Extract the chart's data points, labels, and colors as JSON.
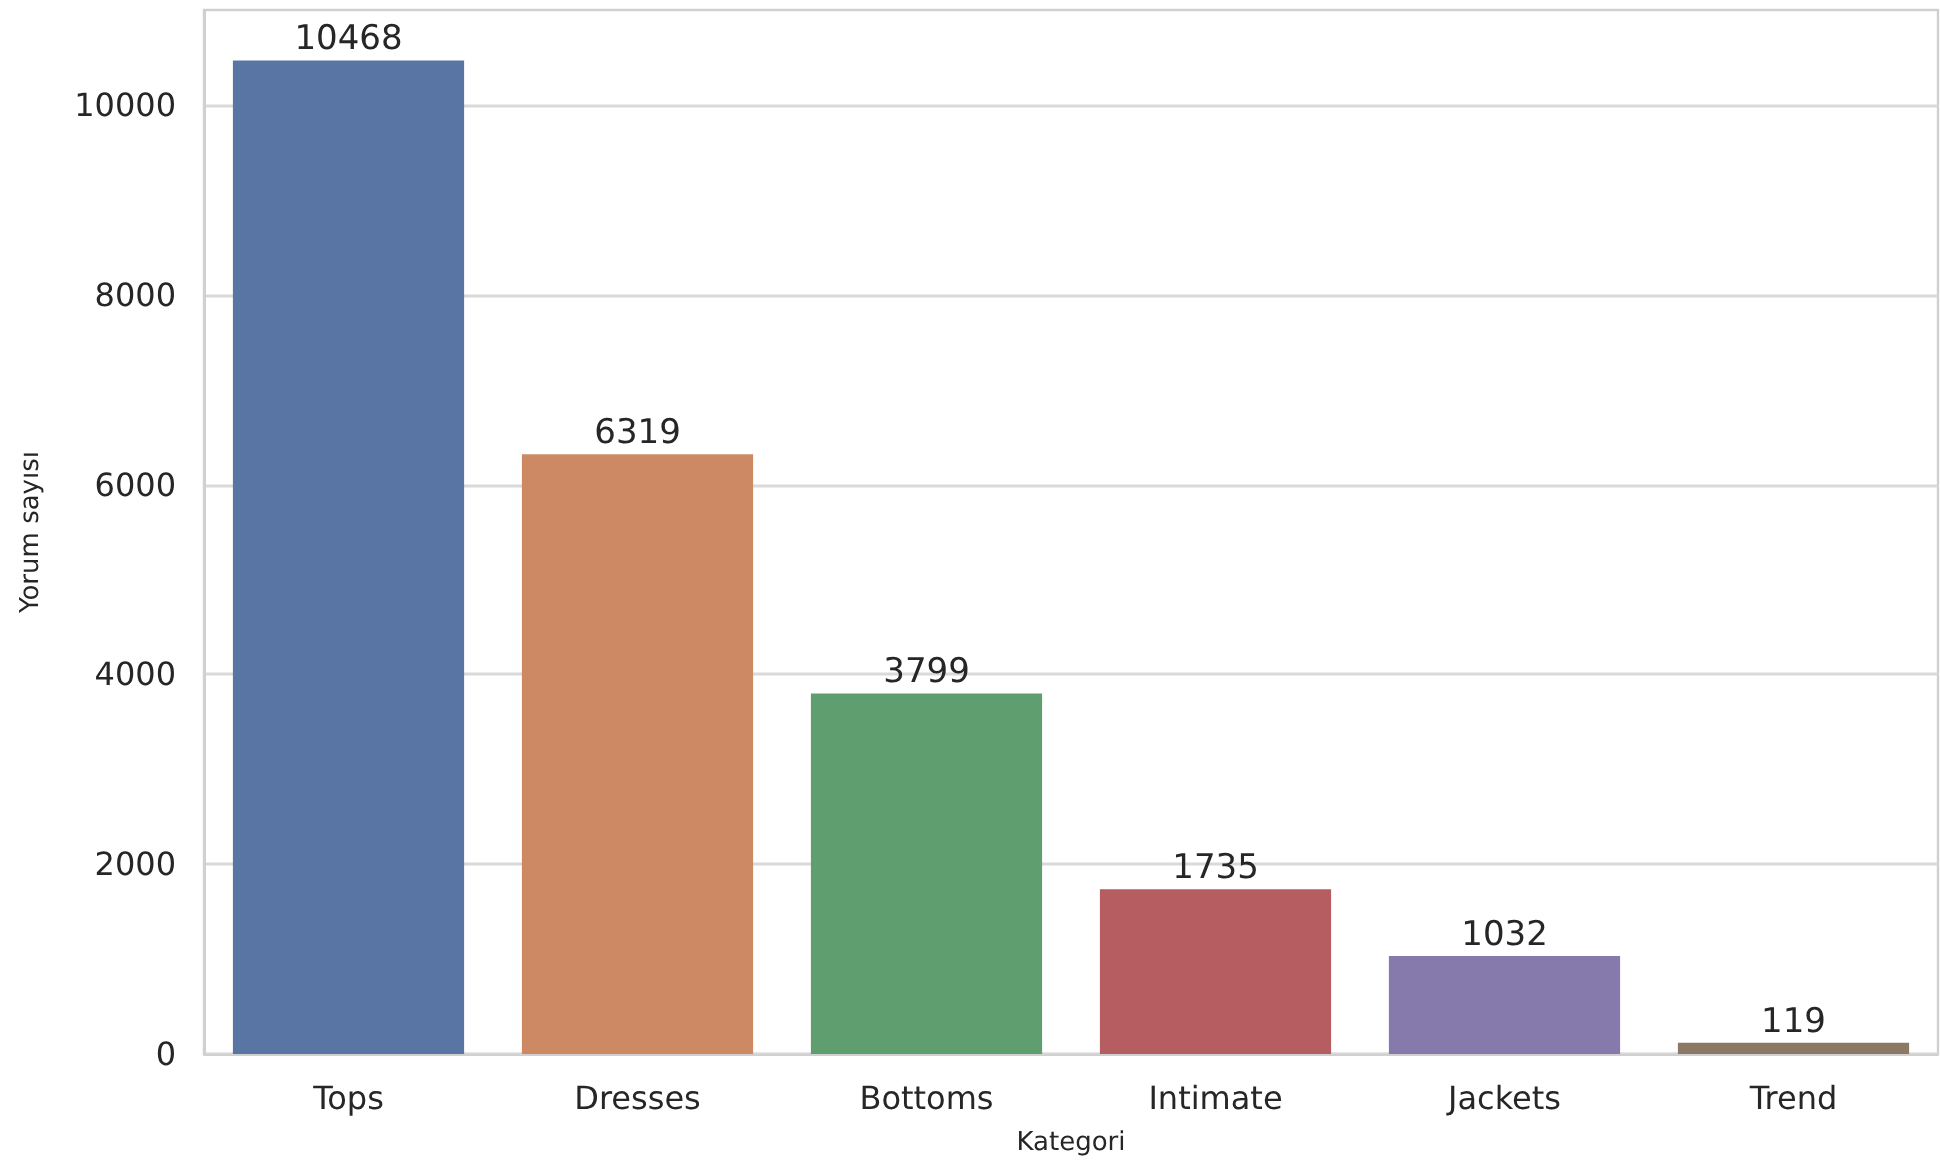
{
  "chart_data": {
    "type": "bar",
    "xlabel": "Kategori",
    "ylabel": "Yorum sayısı",
    "categories": [
      "Tops",
      "Dresses",
      "Bottoms",
      "Intimate",
      "Jackets",
      "Trend"
    ],
    "values": [
      10468,
      6319,
      3799,
      1735,
      1032,
      119
    ],
    "colors": [
      "#5975a4",
      "#cc8963",
      "#5f9e6e",
      "#b55d60",
      "#857aab",
      "#8d7866"
    ],
    "ylim": [
      0,
      11000
    ],
    "yticks": [
      0,
      2000,
      4000,
      6000,
      8000,
      10000
    ],
    "grid": "y",
    "data_labels": true
  }
}
